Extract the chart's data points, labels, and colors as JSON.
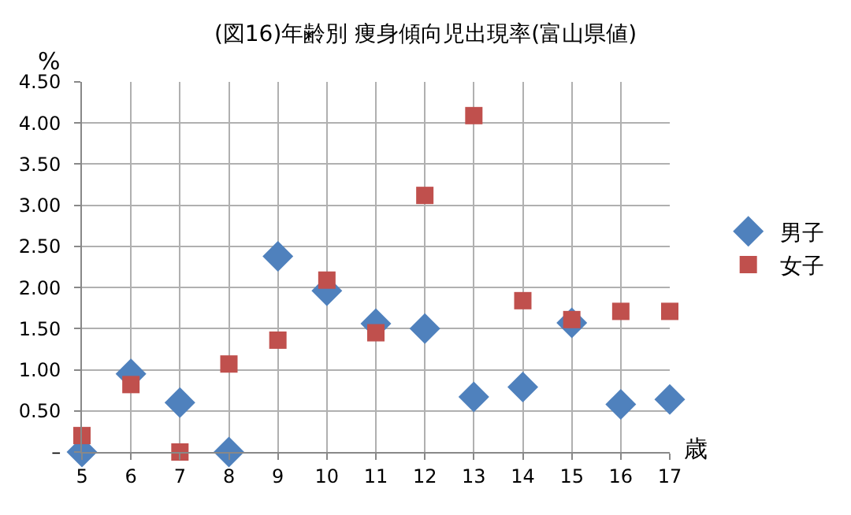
{
  "chart_data": {
    "type": "scatter",
    "title": "(図16)年齢別 痩身傾向児出現率(富山県値)",
    "xlabel": "歳",
    "ylabel": "%",
    "x": [
      5,
      6,
      7,
      8,
      9,
      10,
      11,
      12,
      13,
      14,
      15,
      16,
      17
    ],
    "series": [
      {
        "name": "男子",
        "color": "#4f81bd",
        "marker": "diamond",
        "values": [
          0,
          0.95,
          0.6,
          0,
          2.38,
          1.96,
          1.56,
          1.5,
          0.67,
          0.79,
          1.57,
          0.58,
          0.64
        ]
      },
      {
        "name": "女子",
        "color": "#c0504d",
        "marker": "square",
        "values": [
          0.2,
          0.82,
          0,
          1.07,
          1.36,
          2.09,
          1.45,
          3.12,
          4.09,
          1.84,
          1.61,
          1.71,
          1.71
        ]
      }
    ],
    "xlim": [
      5,
      17
    ],
    "xticks": [
      5,
      6,
      7,
      8,
      9,
      10,
      11,
      12,
      13,
      14,
      15,
      16,
      17
    ],
    "ylim": [
      0,
      4.5
    ],
    "yticks": [
      {
        "value": 0,
        "label": "–"
      },
      {
        "value": 0.5,
        "label": "0.50"
      },
      {
        "value": 1,
        "label": "1.00"
      },
      {
        "value": 1.5,
        "label": "1.50"
      },
      {
        "value": 2,
        "label": "2.00"
      },
      {
        "value": 2.5,
        "label": "2.50"
      },
      {
        "value": 3,
        "label": "3.00"
      },
      {
        "value": 3.5,
        "label": "3.50"
      },
      {
        "value": 4,
        "label": "4.00"
      },
      {
        "value": 4.5,
        "label": "4.50"
      }
    ],
    "grid": true,
    "legend": "right"
  }
}
